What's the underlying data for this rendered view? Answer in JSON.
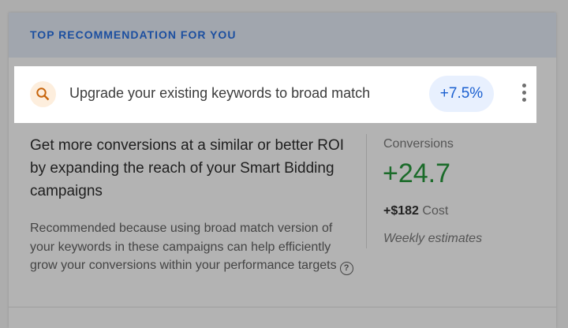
{
  "header": {
    "title": "TOP RECOMMENDATION FOR YOU"
  },
  "recommendation": {
    "icon": "search-icon",
    "text": "Upgrade your existing keywords to broad match",
    "badge": "+7.5%",
    "menu_icon": "more-vert-icon"
  },
  "body": {
    "headline": "Get more conversions at a similar or better ROI by expanding the reach of your Smart Bidding campaigns",
    "reason": "Recommended because using broad match version of your keywords in these campaigns can help efficiently grow your conversions within your performance targets",
    "help_icon": "?"
  },
  "metrics": {
    "label": "Conversions",
    "value": "+24.7",
    "cost_value": "+$182",
    "cost_label": "Cost",
    "note": "Weekly estimates"
  },
  "colors": {
    "accent": "#1a5fd0",
    "positive": "#1b6b2a",
    "icon": "#c7650c"
  }
}
